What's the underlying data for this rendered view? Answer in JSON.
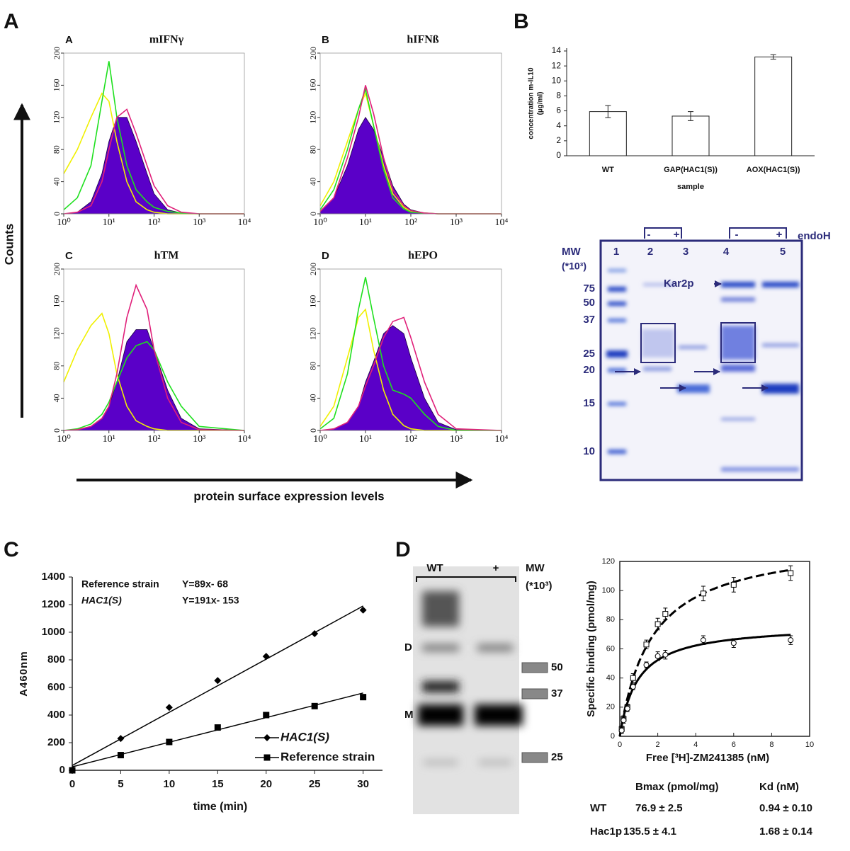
{
  "panel_labels": [
    "A",
    "B",
    "C",
    "D"
  ],
  "figure_a": {
    "ylabel": "Counts",
    "xlabel": "protein surface expression levels"
  },
  "chart_data": [
    {
      "type": "area",
      "panel": "A",
      "title": "mIFNγ",
      "log_x": true,
      "x": [
        1,
        2,
        4,
        7,
        10,
        15,
        25,
        40,
        70,
        100,
        200,
        400,
        1000,
        10000
      ],
      "series": [
        {
          "color": "#5a00c8",
          "fill": true,
          "values": [
            0,
            2,
            15,
            50,
            90,
            120,
            120,
            90,
            50,
            25,
            5,
            1,
            0,
            0
          ]
        },
        {
          "color": "#f0f000",
          "values": [
            50,
            80,
            120,
            150,
            140,
            90,
            40,
            15,
            5,
            2,
            0,
            0,
            0,
            0
          ]
        },
        {
          "color": "#1ee01e",
          "values": [
            5,
            20,
            60,
            140,
            190,
            120,
            60,
            30,
            15,
            8,
            3,
            1,
            0,
            0
          ]
        },
        {
          "color": "#e0207a",
          "values": [
            0,
            2,
            10,
            40,
            80,
            120,
            130,
            100,
            60,
            35,
            10,
            2,
            0,
            0
          ]
        }
      ],
      "xlim": [
        1,
        10000
      ],
      "ylim": [
        0,
        200
      ],
      "xticks": [
        {
          "value": 1,
          "label": "10⁰"
        },
        {
          "value": 10,
          "label": "10¹"
        },
        {
          "value": 100,
          "label": "10²"
        },
        {
          "value": 1000,
          "label": "10³"
        },
        {
          "value": 10000,
          "label": "10⁴"
        }
      ],
      "yticks": [
        0,
        40,
        80,
        120,
        160,
        200
      ]
    },
    {
      "type": "area",
      "panel": "B",
      "title": "hIFNß",
      "log_x": true,
      "x": [
        1,
        2,
        4,
        7,
        10,
        15,
        25,
        40,
        70,
        100,
        200,
        400,
        1000,
        10000
      ],
      "series": [
        {
          "color": "#5a00c8",
          "fill": true,
          "values": [
            3,
            20,
            60,
            105,
            120,
            105,
            70,
            35,
            12,
            5,
            1,
            0,
            0,
            0
          ]
        },
        {
          "color": "#f0f000",
          "values": [
            10,
            40,
            90,
            130,
            150,
            110,
            60,
            25,
            8,
            3,
            1,
            0,
            0,
            0
          ]
        },
        {
          "color": "#1ee01e",
          "values": [
            5,
            30,
            80,
            130,
            155,
            110,
            55,
            20,
            6,
            2,
            1,
            0,
            0,
            0
          ]
        },
        {
          "color": "#e0207a",
          "values": [
            3,
            20,
            70,
            120,
            160,
            125,
            70,
            30,
            10,
            4,
            1,
            0,
            0,
            0
          ]
        }
      ],
      "xlim": [
        1,
        10000
      ],
      "ylim": [
        0,
        200
      ],
      "xticks": [
        {
          "value": 1,
          "label": "10⁰"
        },
        {
          "value": 10,
          "label": "10¹"
        },
        {
          "value": 100,
          "label": "10²"
        },
        {
          "value": 1000,
          "label": "10³"
        },
        {
          "value": 10000,
          "label": "10⁴"
        }
      ],
      "yticks": [
        0,
        40,
        80,
        120,
        160,
        200
      ]
    },
    {
      "type": "area",
      "panel": "C",
      "title": "hTM",
      "log_x": true,
      "x": [
        1,
        2,
        4,
        7,
        10,
        15,
        25,
        40,
        70,
        100,
        200,
        400,
        1000,
        10000
      ],
      "series": [
        {
          "color": "#5a00c8",
          "fill": true,
          "values": [
            0,
            1,
            5,
            15,
            30,
            60,
            110,
            125,
            125,
            100,
            50,
            15,
            2,
            0
          ]
        },
        {
          "color": "#f0f000",
          "values": [
            60,
            100,
            130,
            145,
            120,
            70,
            30,
            12,
            5,
            2,
            0,
            0,
            0,
            0
          ]
        },
        {
          "color": "#1ee01e",
          "values": [
            0,
            2,
            8,
            20,
            35,
            60,
            90,
            105,
            110,
            100,
            60,
            30,
            5,
            0
          ]
        },
        {
          "color": "#e0207a",
          "values": [
            0,
            1,
            5,
            15,
            30,
            70,
            140,
            180,
            150,
            100,
            40,
            10,
            1,
            0
          ]
        }
      ],
      "xlim": [
        1,
        10000
      ],
      "ylim": [
        0,
        200
      ],
      "xticks": [
        {
          "value": 1,
          "label": "10⁰"
        },
        {
          "value": 10,
          "label": "10¹"
        },
        {
          "value": 100,
          "label": "10²"
        },
        {
          "value": 1000,
          "label": "10³"
        },
        {
          "value": 10000,
          "label": "10⁴"
        }
      ],
      "yticks": [
        0,
        40,
        80,
        120,
        160,
        200
      ]
    },
    {
      "type": "area",
      "panel": "D",
      "title": "hEPO",
      "log_x": true,
      "x": [
        1,
        2,
        4,
        7,
        10,
        15,
        25,
        40,
        70,
        100,
        200,
        400,
        1000,
        10000
      ],
      "series": [
        {
          "color": "#5a00c8",
          "fill": true,
          "values": [
            0,
            2,
            10,
            30,
            60,
            85,
            120,
            130,
            120,
            90,
            40,
            10,
            1,
            0
          ]
        },
        {
          "color": "#f0f000",
          "values": [
            5,
            30,
            90,
            140,
            150,
            100,
            50,
            20,
            6,
            2,
            0,
            0,
            0,
            0
          ]
        },
        {
          "color": "#1ee01e",
          "values": [
            2,
            15,
            70,
            150,
            190,
            140,
            80,
            50,
            45,
            40,
            20,
            5,
            0,
            0
          ]
        },
        {
          "color": "#e0207a",
          "values": [
            0,
            2,
            10,
            30,
            55,
            80,
            115,
            135,
            140,
            115,
            60,
            20,
            2,
            0
          ]
        }
      ],
      "xlim": [
        1,
        10000
      ],
      "ylim": [
        0,
        200
      ],
      "xticks": [
        {
          "value": 1,
          "label": "10⁰"
        },
        {
          "value": 10,
          "label": "10¹"
        },
        {
          "value": 100,
          "label": "10²"
        },
        {
          "value": 1000,
          "label": "10³"
        },
        {
          "value": 10000,
          "label": "10⁴"
        }
      ],
      "yticks": [
        0,
        40,
        80,
        120,
        160,
        200
      ]
    },
    {
      "type": "bar",
      "ylabel": [
        "concentration m-IL10",
        "(µg/ml)"
      ],
      "xlabel": "sample",
      "categories": [
        "WT",
        "GAP(HAC1(S))",
        "AOX(HAC1(S))"
      ],
      "values": [
        5.9,
        5.3,
        13.2
      ],
      "errors": [
        0.8,
        0.6,
        0.3
      ],
      "color": "#ffffff",
      "ylim": [
        0,
        14
      ],
      "yticks": [
        0,
        2,
        4,
        6,
        8,
        10,
        12,
        14
      ]
    },
    {
      "type": "line",
      "xlabel": "time (min)",
      "ylabel": "A460nm",
      "x": [
        0,
        5,
        10,
        15,
        20,
        25,
        30
      ],
      "fit_x": [
        0,
        30
      ],
      "series": [
        {
          "name": "HAC1(S)",
          "italic": true,
          "marker": "diamond",
          "color": "#000000",
          "values": [
            0,
            230,
            455,
            650,
            825,
            990,
            1160
          ],
          "fit": [
            35,
            1190
          ]
        },
        {
          "name": "Reference strain",
          "marker": "square",
          "color": "#000000",
          "values": [
            0,
            110,
            205,
            310,
            400,
            465,
            530
          ],
          "fit": [
            25,
            560
          ]
        }
      ],
      "annotations": [
        {
          "name": "Reference strain",
          "equation": "Y=89x- 68"
        },
        {
          "name": "HAC1(S)",
          "equation": "Y=191x- 153"
        }
      ],
      "legend": "lower right",
      "xlim": [
        0,
        32
      ],
      "ylim": [
        0,
        1400
      ],
      "xticks": [
        0,
        5,
        10,
        15,
        20,
        25,
        30
      ],
      "yticks": [
        0,
        200,
        400,
        600,
        800,
        1000,
        1200,
        1400
      ]
    },
    {
      "type": "scatter",
      "xlabel": "Free [³H]-ZM241385 (nM)",
      "ylabel": "Specific binding (pmol/mg)",
      "x": [
        0.1,
        0.2,
        0.4,
        0.7,
        1.4,
        2,
        2.4,
        4.4,
        6,
        9
      ],
      "series": [
        {
          "marker": "square",
          "dash": true,
          "color": "#000000",
          "values": [
            5,
            12,
            20,
            40,
            63,
            77,
            84,
            98,
            104,
            112
          ],
          "errors": [
            2,
            2,
            2,
            3,
            3,
            4,
            4,
            5,
            5,
            5
          ],
          "fit": {
            "bmax": 135.5,
            "kd": 1.68
          }
        },
        {
          "marker": "circle",
          "color": "#000000",
          "values": [
            4,
            11,
            19,
            34,
            49,
            55,
            56,
            66,
            64,
            66
          ],
          "errors": [
            2,
            2,
            2,
            2,
            2,
            3,
            3,
            3,
            3,
            3
          ],
          "fit": {
            "bmax": 76.9,
            "kd": 0.94
          }
        }
      ],
      "xlim": [
        0,
        10
      ],
      "ylim": [
        0,
        120
      ],
      "xticks": [
        0,
        2,
        4,
        6,
        8,
        10
      ],
      "yticks": [
        0,
        20,
        40,
        60,
        80,
        100,
        120
      ]
    }
  ],
  "binding_table": {
    "header": [
      "Bmax (pmol/mg)",
      "Kd (nM)"
    ],
    "rows": [
      [
        "WT",
        "76.9 ± 2.5",
        "0.94 ± 0.10"
      ],
      [
        "Hac1p",
        "135.5 ± 4.1",
        "1.68 ± 0.14"
      ]
    ]
  },
  "gel_b": {
    "enzyme": "endoH",
    "signs": [
      "-",
      "+",
      "-",
      "+"
    ],
    "lanes": [
      "1",
      "2",
      "3",
      "4",
      "5"
    ],
    "mw_title": "MW",
    "mw_unit": "(*10³)",
    "markers": [
      "75",
      "50",
      "37",
      "25",
      "20",
      "15",
      "10"
    ],
    "band_label": "Kar2p"
  },
  "gel_d": {
    "lanes": [
      "WT",
      "+"
    ],
    "mw_title": "MW",
    "mw_unit": "(*10³)",
    "bands": [
      "D",
      "M"
    ],
    "markers": [
      "50",
      "37",
      "25"
    ]
  }
}
